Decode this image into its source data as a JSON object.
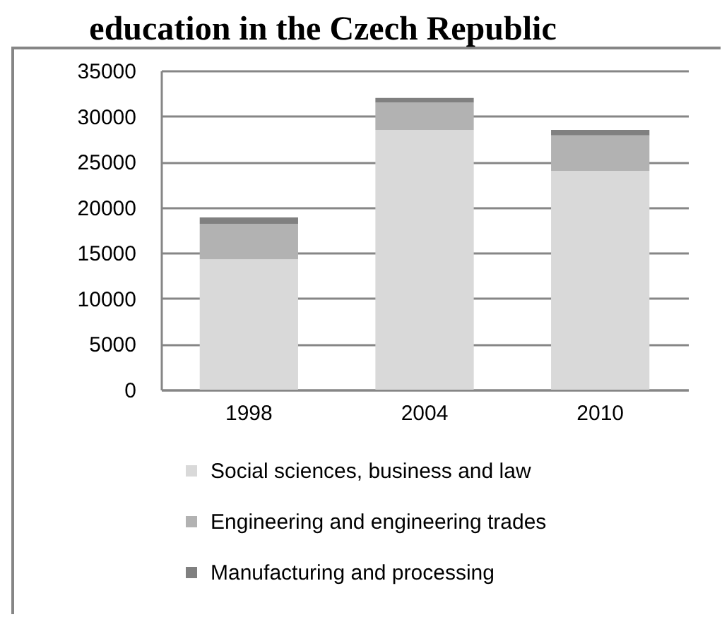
{
  "chart_data": {
    "type": "bar",
    "title": "education in the Czech Republic",
    "categories": [
      "1998",
      "2004",
      "2010"
    ],
    "stacked": true,
    "series": [
      {
        "name": "Social sciences, business and law",
        "color": "#d9d9d9",
        "values": [
          14300,
          28500,
          24000
        ]
      },
      {
        "name": "Engineering and engineering trades",
        "color": "#b2b2b2",
        "values": [
          3900,
          3000,
          3900
        ]
      },
      {
        "name": "Manufacturing and processing",
        "color": "#808080",
        "values": [
          700,
          500,
          600
        ]
      }
    ],
    "ylim": [
      0,
      35000
    ],
    "yticks": [
      0,
      5000,
      10000,
      15000,
      20000,
      25000,
      30000,
      35000
    ],
    "grid": "y",
    "legend": "bottom"
  }
}
